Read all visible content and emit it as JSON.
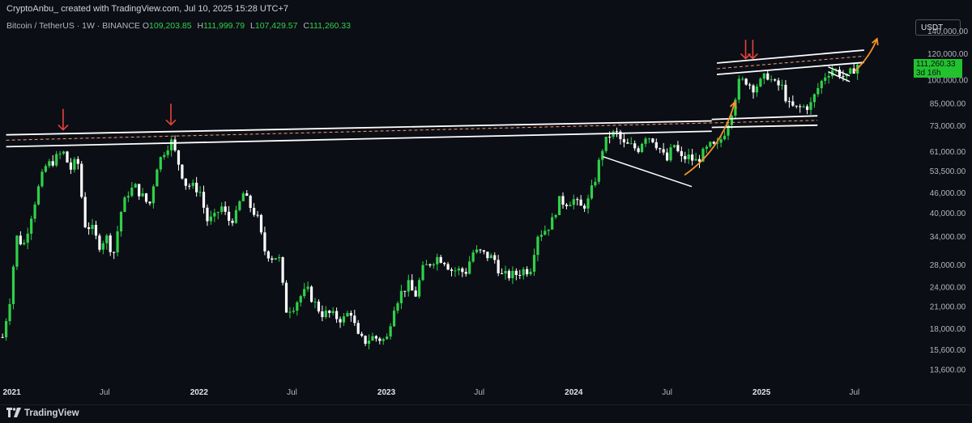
{
  "header": {
    "credit": "CryptoAnbu_ created with TradingView.com, Jul 10, 2025 15:28 UTC+7"
  },
  "legend": {
    "symbol": "Bitcoin / TetherUS · 1W · BINANCE",
    "open_label": "O",
    "open": "109,203.85",
    "high_label": "H",
    "high": "111,999.79",
    "low_label": "L",
    "low": "107,429.57",
    "close_label": "C",
    "close": "111,260.33"
  },
  "currency_button": "USDT",
  "price_tag": {
    "price": "111,260.33",
    "countdown": "3d 16h"
  },
  "footer": {
    "brand": "TradingView"
  },
  "colors": {
    "background": "#0c0e15",
    "up_candle": "#2fd14a",
    "down_candle": "#ffffff",
    "arrow_red": "#e8443a",
    "arrow_orange": "#f59427",
    "trendline": "#ffffff"
  },
  "chart_data": {
    "type": "candlestick",
    "y_scale": "log",
    "y_ticks": [
      140000,
      120000,
      100000,
      85000,
      73000,
      61000,
      53500,
      46000,
      40000,
      34000,
      28000,
      24000,
      21000,
      18000,
      15600,
      13600
    ],
    "y_tick_labels": [
      "140,000.00",
      "120,000.00",
      "100,000.00",
      "85,000.00",
      "73,000.00",
      "61,000.00",
      "53,500.00",
      "46,000.00",
      "40,000.00",
      "34,000.00",
      "28,000.00",
      "24,000.00",
      "21,000.00",
      "18,000.00",
      "15,600.00",
      "13,600.00"
    ],
    "x_ticks": [
      {
        "date": "2021-01-01",
        "label": "2021",
        "bold": true
      },
      {
        "date": "2021-07-01",
        "label": "Jul",
        "bold": false
      },
      {
        "date": "2022-01-01",
        "label": "2022",
        "bold": true
      },
      {
        "date": "2022-07-01",
        "label": "Jul",
        "bold": false
      },
      {
        "date": "2023-01-01",
        "label": "2023",
        "bold": true
      },
      {
        "date": "2023-07-01",
        "label": "Jul",
        "bold": false
      },
      {
        "date": "2024-01-01",
        "label": "2024",
        "bold": true
      },
      {
        "date": "2024-07-01",
        "label": "Jul",
        "bold": false
      },
      {
        "date": "2025-01-01",
        "label": "2025",
        "bold": true
      },
      {
        "date": "2025-07-01",
        "label": "Jul",
        "bold": false
      }
    ],
    "x_range": [
      "2020-12-09",
      "2025-10-15"
    ],
    "y_range": [
      12500,
      152000
    ],
    "last_price": 111260.33,
    "close_path": [
      [
        "2020-12-14",
        17000
      ],
      [
        "2020-12-28",
        22000
      ],
      [
        "2021-01-10",
        34000
      ],
      [
        "2021-01-24",
        32000
      ],
      [
        "2021-02-07",
        39000
      ],
      [
        "2021-02-21",
        47000
      ],
      [
        "2021-03-07",
        55000
      ],
      [
        "2021-03-21",
        57000
      ],
      [
        "2021-04-11",
        61000
      ],
      [
        "2021-04-25",
        54000
      ],
      [
        "2021-05-09",
        58000
      ],
      [
        "2021-05-23",
        37000
      ],
      [
        "2021-06-06",
        36000
      ],
      [
        "2021-06-20",
        32000
      ],
      [
        "2021-07-04",
        34000
      ],
      [
        "2021-07-18",
        30000
      ],
      [
        "2021-08-01",
        40000
      ],
      [
        "2021-08-15",
        46000
      ],
      [
        "2021-08-29",
        48000
      ],
      [
        "2021-09-12",
        45000
      ],
      [
        "2021-09-26",
        42000
      ],
      [
        "2021-10-10",
        55000
      ],
      [
        "2021-10-24",
        61000
      ],
      [
        "2021-11-07",
        66000
      ],
      [
        "2021-11-21",
        57000
      ],
      [
        "2021-12-05",
        49000
      ],
      [
        "2021-12-19",
        48000
      ],
      [
        "2022-01-02",
        47000
      ],
      [
        "2022-01-16",
        38000
      ],
      [
        "2022-01-30",
        38500
      ],
      [
        "2022-02-13",
        42000
      ],
      [
        "2022-02-27",
        38000
      ],
      [
        "2022-03-13",
        39000
      ],
      [
        "2022-03-27",
        46000
      ],
      [
        "2022-04-10",
        42000
      ],
      [
        "2022-04-24",
        39000
      ],
      [
        "2022-05-08",
        31000
      ],
      [
        "2022-05-22",
        29500
      ],
      [
        "2022-06-05",
        29800
      ],
      [
        "2022-06-19",
        20500
      ],
      [
        "2022-07-03",
        21000
      ],
      [
        "2022-07-17",
        22500
      ],
      [
        "2022-07-31",
        23500
      ],
      [
        "2022-08-14",
        21500
      ],
      [
        "2022-08-28",
        20000
      ],
      [
        "2022-09-11",
        20000
      ],
      [
        "2022-09-25",
        19500
      ],
      [
        "2022-10-09",
        19200
      ],
      [
        "2022-10-23",
        20500
      ],
      [
        "2022-11-06",
        17000
      ],
      [
        "2022-11-20",
        16500
      ],
      [
        "2022-12-04",
        17000
      ],
      [
        "2022-12-18",
        16800
      ],
      [
        "2023-01-01",
        16600
      ],
      [
        "2023-01-15",
        21000
      ],
      [
        "2023-01-29",
        23000
      ],
      [
        "2023-02-12",
        24500
      ],
      [
        "2023-02-26",
        22500
      ],
      [
        "2023-03-12",
        27000
      ],
      [
        "2023-03-26",
        28300
      ],
      [
        "2023-04-09",
        29500
      ],
      [
        "2023-04-23",
        29000
      ],
      [
        "2023-05-07",
        27000
      ],
      [
        "2023-05-21",
        27000
      ],
      [
        "2023-06-04",
        26500
      ],
      [
        "2023-06-18",
        30500
      ],
      [
        "2023-07-02",
        30500
      ],
      [
        "2023-07-16",
        29800
      ],
      [
        "2023-07-30",
        29200
      ],
      [
        "2023-08-13",
        26000
      ],
      [
        "2023-08-27",
        26000
      ],
      [
        "2023-09-10",
        26200
      ],
      [
        "2023-09-24",
        27000
      ],
      [
        "2023-10-08",
        27000
      ],
      [
        "2023-10-22",
        34500
      ],
      [
        "2023-11-05",
        35500
      ],
      [
        "2023-11-19",
        37500
      ],
      [
        "2023-12-03",
        43500
      ],
      [
        "2023-12-17",
        43000
      ],
      [
        "2023-12-31",
        44000
      ],
      [
        "2024-01-14",
        41500
      ],
      [
        "2024-01-28",
        43000
      ],
      [
        "2024-02-11",
        50000
      ],
      [
        "2024-02-25",
        62000
      ],
      [
        "2024-03-10",
        68500
      ],
      [
        "2024-03-24",
        69500
      ],
      [
        "2024-04-07",
        64000
      ],
      [
        "2024-04-21",
        63500
      ],
      [
        "2024-05-05",
        62000
      ],
      [
        "2024-05-19",
        68500
      ],
      [
        "2024-06-02",
        67000
      ],
      [
        "2024-06-16",
        62500
      ],
      [
        "2024-06-30",
        57000
      ],
      [
        "2024-07-14",
        64500
      ],
      [
        "2024-07-28",
        58000
      ],
      [
        "2024-08-11",
        59000
      ],
      [
        "2024-08-25",
        57000
      ],
      [
        "2024-09-08",
        60000
      ],
      [
        "2024-09-22",
        63500
      ],
      [
        "2024-10-06",
        63000
      ],
      [
        "2024-10-20",
        69500
      ],
      [
        "2024-11-03",
        80000
      ],
      [
        "2024-11-17",
        98000
      ],
      [
        "2024-12-01",
        100000
      ],
      [
        "2024-12-15",
        95000
      ],
      [
        "2024-12-29",
        98000
      ],
      [
        "2025-01-12",
        104000
      ],
      [
        "2025-01-26",
        97000
      ],
      [
        "2025-02-09",
        96000
      ],
      [
        "2025-02-23",
        84000
      ],
      [
        "2025-03-09",
        82000
      ],
      [
        "2025-03-23",
        83000
      ],
      [
        "2025-04-06",
        84000
      ],
      [
        "2025-04-20",
        94000
      ],
      [
        "2025-05-04",
        103000
      ],
      [
        "2025-05-18",
        108000
      ],
      [
        "2025-06-01",
        105500
      ],
      [
        "2025-06-15",
        101000
      ],
      [
        "2025-06-29",
        108000
      ],
      [
        "2025-07-10",
        111260
      ]
    ]
  },
  "annotations": {
    "resistance_lines": [
      {
        "from": [
          "2020-12-21",
          68600
        ],
        "to": [
          "2024-09-26",
          75500
        ]
      },
      {
        "from": [
          "2020-12-21",
          63200
        ],
        "to": [
          "2024-09-26",
          70300
        ]
      },
      {
        "from": [
          "2024-09-26",
          72200
        ],
        "to": [
          "2025-04-20",
          73300
        ]
      },
      {
        "from": [
          "2024-09-26",
          76300
        ],
        "to": [
          "2025-04-20",
          78200
        ]
      }
    ],
    "dashed_line": {
      "from": [
        "2020-12-21",
        66100
      ],
      "to": [
        "2025-04-20",
        75800
      ]
    },
    "upper_channel": [
      {
        "from": [
          "2024-10-06",
          112500
        ],
        "to": [
          "2025-07-20",
          123000
        ]
      },
      {
        "from": [
          "2024-10-06",
          104000
        ],
        "to": [
          "2025-07-20",
          113000
        ]
      }
    ],
    "upper_dashed": {
      "from": [
        "2024-10-06",
        108200
      ],
      "to": [
        "2025-07-20",
        118000
      ]
    },
    "wedge_lines": [
      {
        "from": [
          "2024-02-27",
          59000
        ],
        "to": [
          "2024-08-18",
          48000
        ]
      },
      {
        "from": [
          "2025-05-11",
          109500
        ],
        "to": [
          "2025-06-22",
          103000
        ]
      },
      {
        "from": [
          "2025-05-11",
          106000
        ],
        "to": [
          "2025-06-22",
          99000
        ]
      }
    ],
    "red_arrows": [
      {
        "date": "2021-04-11",
        "from": 82000,
        "to": 71000
      },
      {
        "date": "2021-11-07",
        "from": 85000,
        "to": 73500
      },
      {
        "date": "2024-12-01",
        "from": 132000,
        "to": 116000
      },
      {
        "date": "2024-12-15",
        "from": 132000,
        "to": 116000
      }
    ],
    "orange_arrows": [
      {
        "from": [
          "2024-08-04",
          52000
        ],
        "mid": [
          "2024-10-15",
          62000
        ],
        "to": [
          "2024-11-10",
          86000
        ]
      },
      {
        "from": [
          "2025-07-01",
          106000
        ],
        "mid": [
          "2025-08-01",
          118000
        ],
        "to": [
          "2025-08-14",
          133000
        ]
      }
    ]
  }
}
